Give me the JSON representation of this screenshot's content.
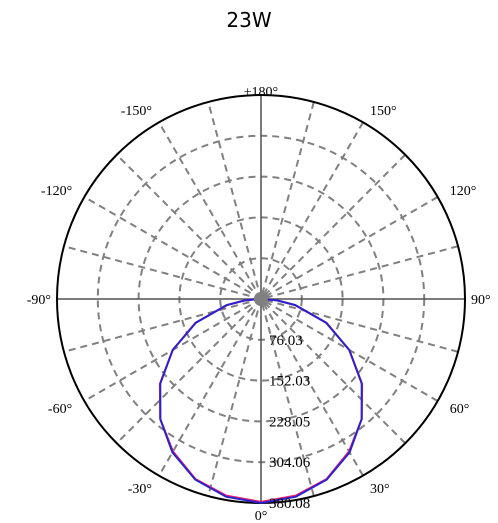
{
  "chart_data": {
    "type": "polar",
    "title": "23W",
    "angle_labels": [
      {
        "deg": 180,
        "text": "±180°"
      },
      {
        "deg": 150,
        "text": "150°"
      },
      {
        "deg": -150,
        "text": "-150°"
      },
      {
        "deg": 120,
        "text": "120°"
      },
      {
        "deg": -120,
        "text": "-120°"
      },
      {
        "deg": 90,
        "text": "90°"
      },
      {
        "deg": -90,
        "text": "-90°"
      },
      {
        "deg": 60,
        "text": "60°"
      },
      {
        "deg": -60,
        "text": "-60°"
      },
      {
        "deg": 30,
        "text": "30°"
      },
      {
        "deg": -30,
        "text": "-30°"
      },
      {
        "deg": 0,
        "text": "0°"
      }
    ],
    "radial_ticks": [
      76.03,
      152.03,
      228.05,
      304.06,
      380.08
    ],
    "radial_tick_labels": [
      "76.03",
      "152.03",
      "228.05",
      "304.06",
      "380.08"
    ],
    "rmax": 380.08,
    "grid": true,
    "spoke_step_deg": 15,
    "series": [
      {
        "color": "#e8226e",
        "theta": [
          0,
          10,
          20,
          30,
          40,
          50,
          60,
          70,
          80,
          85,
          90
        ],
        "r": [
          378,
          372,
          357,
          328,
          292,
          246,
          190,
          130,
          64,
          30,
          5
        ]
      },
      {
        "color": "#2b22cc",
        "theta": [
          0,
          10,
          20,
          30,
          40,
          50,
          60,
          70,
          80,
          85,
          90
        ],
        "r": [
          380,
          374,
          358,
          330,
          292,
          245,
          190,
          129,
          65,
          31,
          6
        ]
      }
    ]
  }
}
